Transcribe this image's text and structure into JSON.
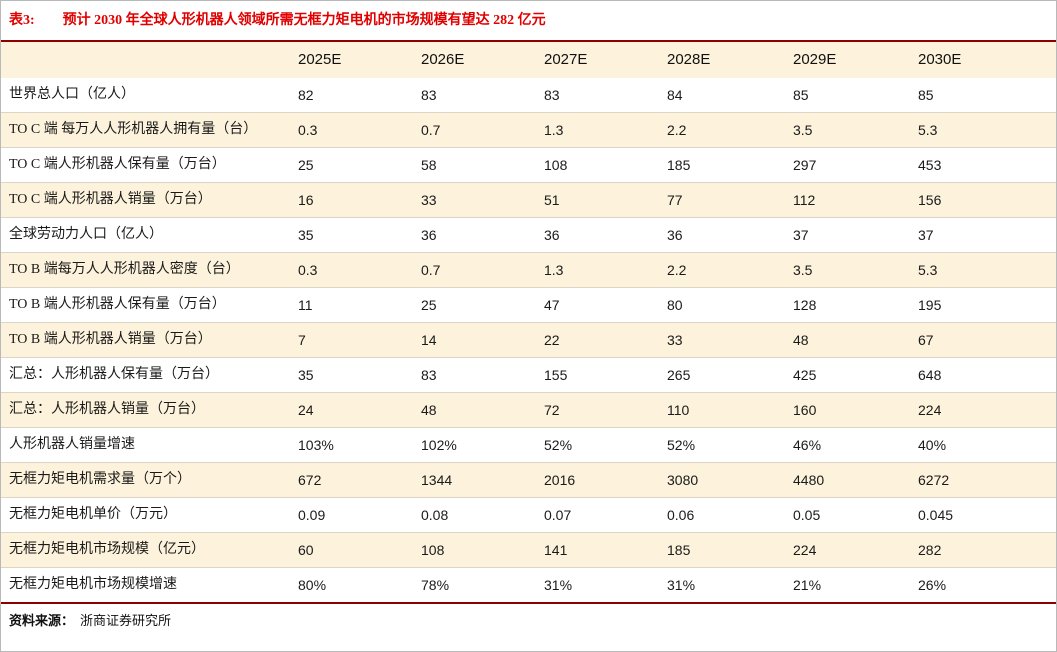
{
  "title": {
    "label": "表3:",
    "text": "预计 2030 年全球人形机器人领域所需无框力矩电机的市场规模有望达 282 亿元"
  },
  "source": {
    "label": "资料来源：",
    "text": "浙商证券研究所"
  },
  "colors": {
    "table_border_dark_red": "#8e0000",
    "title_red": "#e10000",
    "row_cream": "#fdf3dc"
  },
  "chart_data": {
    "type": "table",
    "columns": [
      "2025E",
      "2026E",
      "2027E",
      "2028E",
      "2029E",
      "2030E"
    ],
    "rows": [
      {
        "label": "世界总人口（亿人）",
        "values": [
          "82",
          "83",
          "83",
          "84",
          "85",
          "85"
        ]
      },
      {
        "label": "TO C 端 每万人人形机器人拥有量（台）",
        "values": [
          "0.3",
          "0.7",
          "1.3",
          "2.2",
          "3.5",
          "5.3"
        ]
      },
      {
        "label": "TO C 端人形机器人保有量（万台）",
        "values": [
          "25",
          "58",
          "108",
          "185",
          "297",
          "453"
        ]
      },
      {
        "label": "TO C 端人形机器人销量（万台）",
        "values": [
          "16",
          "33",
          "51",
          "77",
          "112",
          "156"
        ]
      },
      {
        "label": "全球劳动力人口（亿人）",
        "values": [
          "35",
          "36",
          "36",
          "36",
          "37",
          "37"
        ]
      },
      {
        "label": "TO B 端每万人人形机器人密度（台）",
        "values": [
          "0.3",
          "0.7",
          "1.3",
          "2.2",
          "3.5",
          "5.3"
        ]
      },
      {
        "label": "TO B 端人形机器人保有量（万台）",
        "values": [
          "11",
          "25",
          "47",
          "80",
          "128",
          "195"
        ]
      },
      {
        "label": "TO B 端人形机器人销量（万台）",
        "values": [
          "7",
          "14",
          "22",
          "33",
          "48",
          "67"
        ]
      },
      {
        "label": "汇总：人形机器人保有量（万台）",
        "values": [
          "35",
          "83",
          "155",
          "265",
          "425",
          "648"
        ]
      },
      {
        "label": "汇总：人形机器人销量（万台）",
        "values": [
          "24",
          "48",
          "72",
          "110",
          "160",
          "224"
        ]
      },
      {
        "label": "人形机器人销量增速",
        "values": [
          "103%",
          "102%",
          "52%",
          "52%",
          "46%",
          "40%"
        ]
      },
      {
        "label": "无框力矩电机需求量（万个）",
        "values": [
          "672",
          "1344",
          "2016",
          "3080",
          "4480",
          "6272"
        ]
      },
      {
        "label": "无框力矩电机单价（万元）",
        "values": [
          "0.09",
          "0.08",
          "0.07",
          "0.06",
          "0.05",
          "0.045"
        ]
      },
      {
        "label": "无框力矩电机市场规模（亿元）",
        "values": [
          "60",
          "108",
          "141",
          "185",
          "224",
          "282"
        ]
      },
      {
        "label": "无框力矩电机市场规模增速",
        "values": [
          "80%",
          "78%",
          "31%",
          "31%",
          "21%",
          "26%"
        ]
      }
    ]
  }
}
